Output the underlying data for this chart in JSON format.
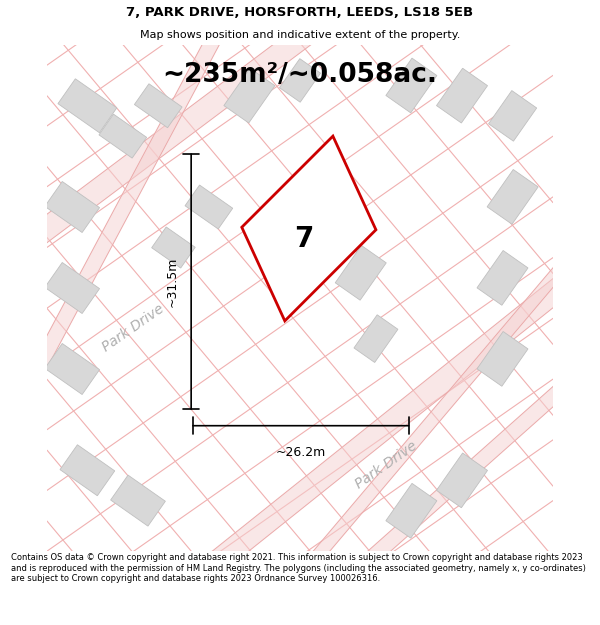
{
  "title_line1": "7, PARK DRIVE, HORSFORTH, LEEDS, LS18 5EB",
  "title_line2": "Map shows position and indicative extent of the property.",
  "area_text": "~235m²/~0.058ac.",
  "property_number": "7",
  "dim_width": "~26.2m",
  "dim_height": "~31.5m",
  "road_label1": "Park Drive",
  "road_label2": "Park Drive",
  "footer_text": "Contains OS data © Crown copyright and database right 2021. This information is subject to Crown copyright and database rights 2023 and is reproduced with the permission of HM Land Registry. The polygons (including the associated geometry, namely x, y co-ordinates) are subject to Crown copyright and database rights 2023 Ordnance Survey 100026316.",
  "bg_color": "#ffffff",
  "map_bg": "#ffffff",
  "property_fill": "#ffffff",
  "property_edge": "#cc0000",
  "road_color": "#f0b8b8",
  "building_fill": "#d8d8d8",
  "building_edge": "#c0c0c0",
  "text_color": "#000000",
  "road_text_color": "#b0b0b0",
  "title_fontsize": 9.5,
  "subtitle_fontsize": 8,
  "area_fontsize": 20,
  "footer_fontsize": 6.0
}
